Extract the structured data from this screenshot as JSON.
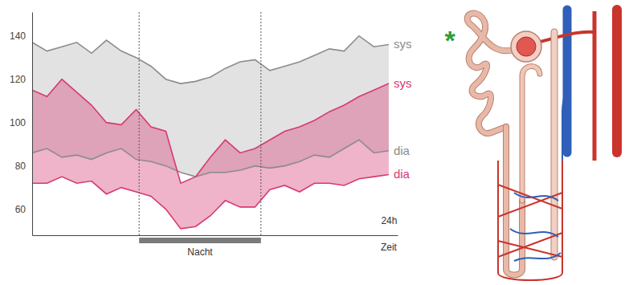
{
  "chart_data": {
    "type": "range_area",
    "x_label": "Zeit",
    "x": [
      0,
      1,
      2,
      3,
      4,
      5,
      6,
      7,
      8,
      9,
      10,
      11,
      12,
      13,
      14,
      15,
      16,
      17,
      18,
      19,
      20,
      21,
      22,
      23,
      24
    ],
    "series": [
      {
        "name": "sys",
        "color": "#8c8c8c",
        "values": [
          137,
          133,
          135,
          137,
          132,
          138,
          133,
          130,
          126,
          120,
          118,
          119,
          121,
          125,
          128,
          129,
          124,
          126,
          128,
          131,
          134,
          133,
          140,
          135,
          136
        ]
      },
      {
        "name": "dia",
        "color": "#8c8c8c",
        "values": [
          86,
          88,
          84,
          85,
          83,
          86,
          88,
          83,
          82,
          80,
          77,
          75,
          77,
          77,
          78,
          80,
          79,
          80,
          82,
          85,
          84,
          88,
          92,
          86,
          87
        ]
      },
      {
        "name": "sys",
        "color": "#d63a72",
        "values": [
          115,
          112,
          120,
          114,
          108,
          100,
          99,
          106,
          98,
          96,
          72,
          75,
          84,
          92,
          86,
          88,
          92,
          96,
          98,
          101,
          105,
          108,
          112,
          115,
          118
        ]
      },
      {
        "name": "dia",
        "color": "#d63a72",
        "values": [
          72,
          72,
          75,
          72,
          73,
          67,
          70,
          68,
          66,
          60,
          51,
          52,
          57,
          64,
          61,
          61,
          69,
          71,
          68,
          72,
          72,
          71,
          74,
          75,
          76
        ]
      }
    ],
    "xlim": [
      0,
      24.6
    ],
    "xticks": [
      {
        "value": 24,
        "label": "24h"
      }
    ],
    "ylim": [
      48,
      151
    ],
    "yticks": [
      60,
      80,
      100,
      120,
      140
    ],
    "grid": false,
    "annotations": [
      {
        "text": "Nacht",
        "x": [
          7.2,
          15.4
        ]
      },
      {
        "text": "*",
        "color": "#2e9e3a"
      }
    ]
  }
}
